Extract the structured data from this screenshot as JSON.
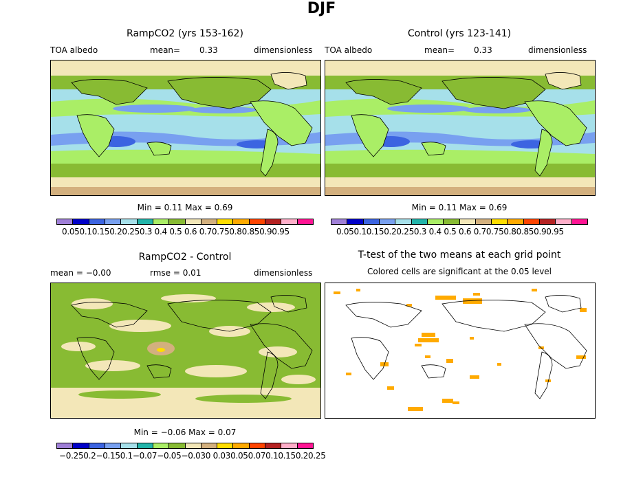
{
  "page_title": "DJF",
  "panels": {
    "top_left": {
      "title": "RampCO2 (yrs 153-162)",
      "variable": "TOA albedo",
      "mean_label": "mean=",
      "mean_value": "0.33",
      "units": "dimensionless",
      "minmax": "Min =    0.11  Max =     0.69"
    },
    "top_right": {
      "title": "Control (yrs 123-141)",
      "variable": "TOA albedo",
      "mean_label": "mean=",
      "mean_value": "0.33",
      "units": "dimensionless",
      "minmax": "Min =    0.11  Max =     0.69"
    },
    "bottom_left": {
      "title": "RampCO2 - Control",
      "mean_text": "mean =   −0.00",
      "rmse_text": "rmse =     0.01",
      "units": "dimensionless",
      "minmax": "Min =   −0.06  Max =     0.07"
    },
    "bottom_right": {
      "title": "T-test of the two means at each grid point",
      "subtitle": "Colored cells are significant at the 0.05 level"
    }
  },
  "colorbar_colors": [
    "#9f7fd7",
    "#0000c8",
    "#3c64e1",
    "#78a0f0",
    "#a6e0ea",
    "#22b4aa",
    "#aaee66",
    "#88bb33",
    "#f3e7b8",
    "#d3b07e",
    "#ffdd00",
    "#ffaa00",
    "#ff4400",
    "#b42222",
    "#ffaec9",
    "#ff1493"
  ],
  "colorbar_ticks_abs": "0.050.10.150.20.250.3 0.4 0.5 0.6 0.70.750.80.850.90.95",
  "colorbar_ticks_diff": "−0.250.2−0.150.1−0.07−0.05−0.030 0.030.050.070.10.150.20.25",
  "map_colors": {
    "ocean_mid": "#a6e0ea",
    "ocean_high": "#88bb33",
    "ocean_low": "#78a0f0",
    "ocean_min": "#3c64e1",
    "band": "#aaee66",
    "land_bright": "#d3b07e",
    "land_light": "#f3e7b8",
    "diff_pos": "#88bb33",
    "diff_neg": "#f3e7b8",
    "signif": "#ffaa00"
  }
}
